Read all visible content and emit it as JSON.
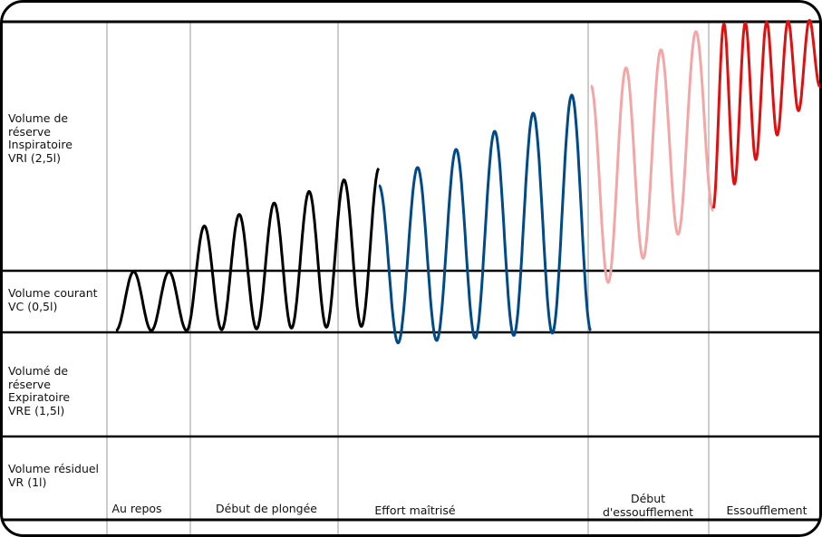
{
  "zones": [
    {
      "id": "vri",
      "label": "Volume de\nréserve\nInspiratoire\nVRI (2,5l)"
    },
    {
      "id": "vc",
      "label": "Volume courant\nVC (0,5l)"
    },
    {
      "id": "vre",
      "label": "Volumé de\nréserve\nExpiratoire\nVRE (1,5l)"
    },
    {
      "id": "vr",
      "label": "Volume résiduel\nVR (1l)"
    }
  ],
  "phases": [
    {
      "id": "repos",
      "label": "Au repos"
    },
    {
      "id": "debut-plongee",
      "label": "Début de plongée"
    },
    {
      "id": "effort",
      "label": "Effort maîtrisé"
    },
    {
      "id": "debut-essoufflement",
      "label": "Début\nd'essoufflement"
    },
    {
      "id": "essoufflement",
      "label": "Essoufflement"
    }
  ],
  "colors": {
    "frame": "#000000",
    "divider": "#999999",
    "repos": "#000000",
    "debut_plongee": "#000000",
    "effort": "#004a87",
    "debut_essoufflement": "#f4a6a6",
    "essoufflement": "#e01010"
  }
}
